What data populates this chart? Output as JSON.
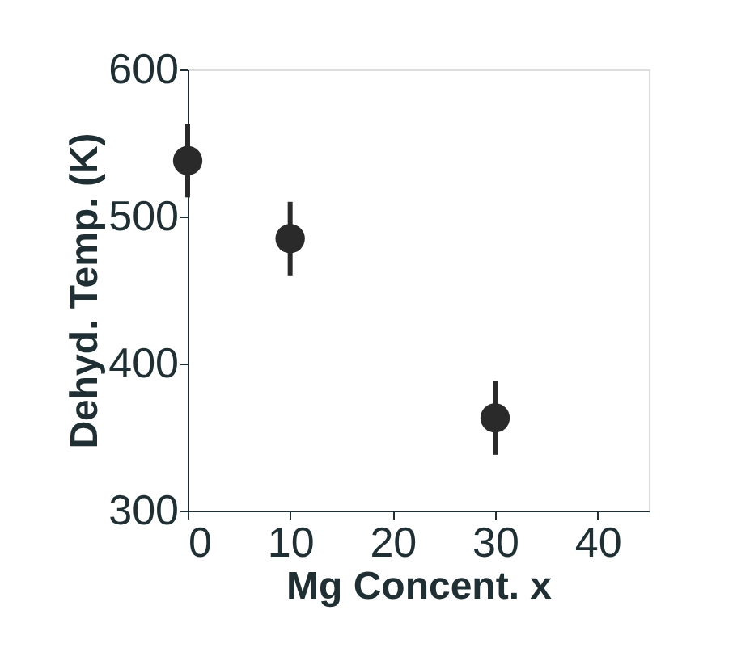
{
  "chart_data": {
    "type": "scatter",
    "xlabel": "Mg Concent. x",
    "ylabel": "Dehyd. Temp. (K)",
    "x": [
      0,
      10,
      30
    ],
    "series": [
      {
        "color": "#2a2a2a",
        "values": [
          538,
          485,
          363
        ],
        "errors": [
          25,
          25,
          25
        ]
      }
    ],
    "xlim": [
      0,
      45
    ],
    "xticks": [
      0,
      10,
      20,
      30,
      40
    ],
    "ylim": [
      300,
      600
    ],
    "yticks": [
      300,
      400,
      500,
      600
    ],
    "marker": "circle",
    "grid": false
  }
}
